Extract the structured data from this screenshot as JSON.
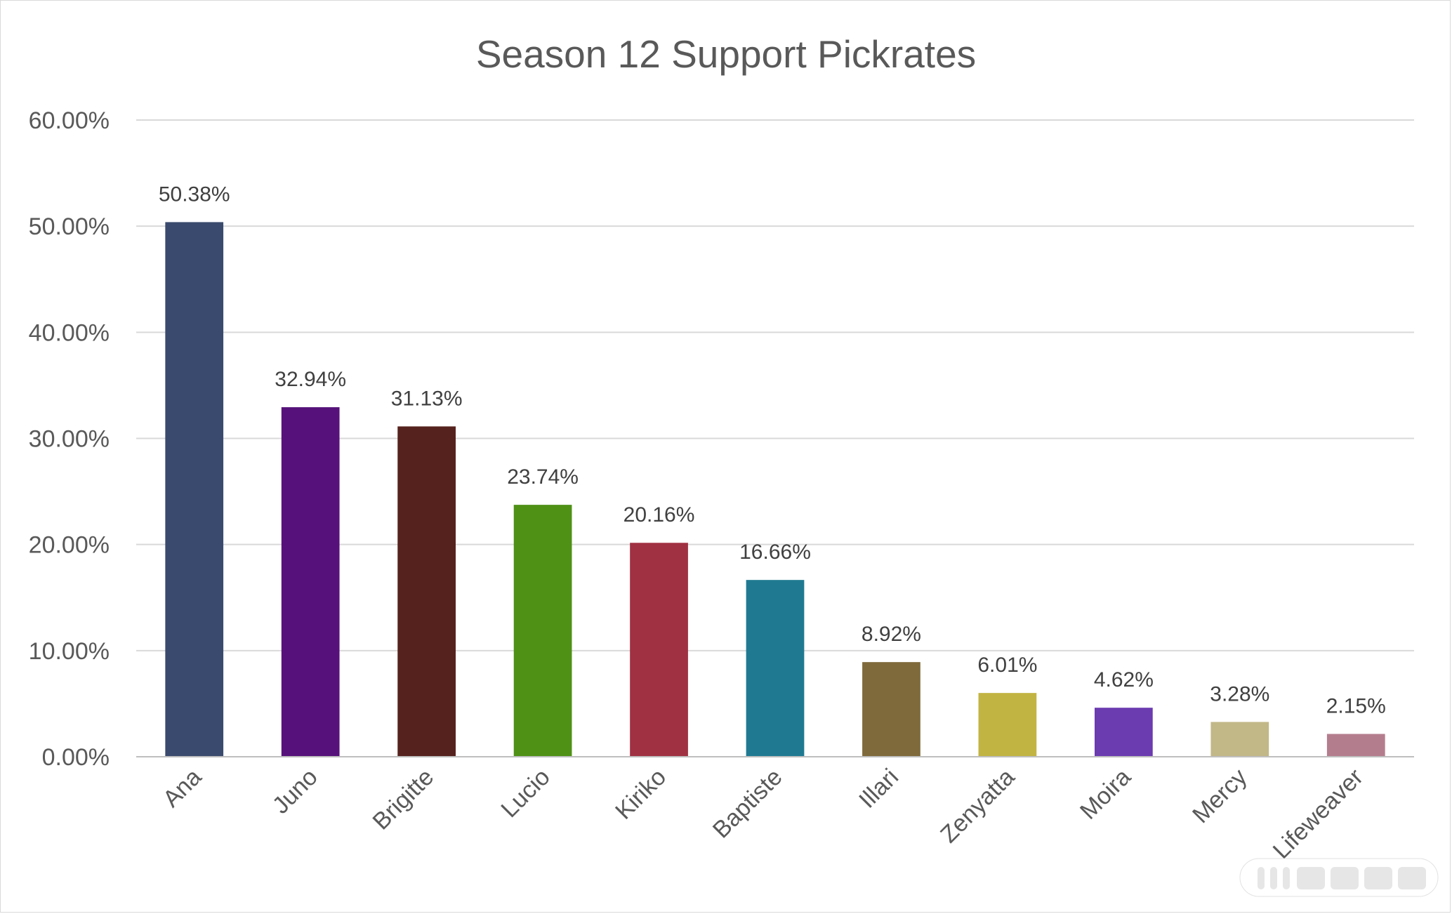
{
  "chart_data": {
    "type": "bar",
    "title": "Season 12 Support Pickrates",
    "xlabel": "",
    "ylabel": "",
    "ylim": [
      0,
      60
    ],
    "y_ticks": [
      "0.00%",
      "10.00%",
      "20.00%",
      "30.00%",
      "40.00%",
      "50.00%",
      "60.00%"
    ],
    "grid": true,
    "legend": "none",
    "categories": [
      "Ana",
      "Juno",
      "Brigitte",
      "Lucio",
      "Kiriko",
      "Baptiste",
      "Illari",
      "Zenyatta",
      "Moira",
      "Mercy",
      "Lifeweaver"
    ],
    "values": [
      50.38,
      32.94,
      31.13,
      23.74,
      20.16,
      16.66,
      8.92,
      6.01,
      4.62,
      3.28,
      2.15
    ],
    "data_labels": [
      "50.38%",
      "32.94%",
      "31.13%",
      "23.74%",
      "20.16%",
      "16.66%",
      "8.92%",
      "6.01%",
      "4.62%",
      "3.28%",
      "2.15%"
    ],
    "colors": [
      "#3a4a6e",
      "#56127a",
      "#56221d",
      "#4e9115",
      "#a03142",
      "#1f7a91",
      "#7f6a3b",
      "#c2b442",
      "#6b3bb0",
      "#c2b787",
      "#b47d8e"
    ]
  }
}
